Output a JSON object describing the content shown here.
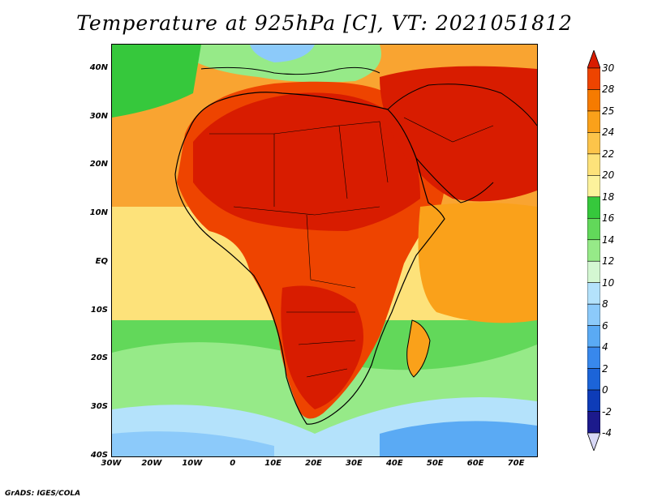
{
  "title": "Temperature at 925hPa [C], VT: 2021051812",
  "credit": "GrADS: IGES/COLA",
  "axes": {
    "lat_labels": [
      "40N",
      "30N",
      "20N",
      "10N",
      "EQ",
      "10S",
      "20S",
      "30S",
      "40S"
    ],
    "lat_values": [
      40,
      30,
      20,
      10,
      0,
      -10,
      -20,
      -30,
      -40
    ],
    "lon_labels": [
      "30W",
      "20W",
      "10W",
      "0",
      "10E",
      "20E",
      "30E",
      "40E",
      "50E",
      "60E",
      "70E"
    ],
    "lon_values": [
      -30,
      -20,
      -10,
      0,
      10,
      20,
      30,
      40,
      50,
      60,
      70
    ],
    "lat_range": [
      -40,
      45
    ],
    "lon_range": [
      -30,
      75
    ]
  },
  "colorbar": {
    "labels": [
      "30",
      "28",
      "25",
      "24",
      "22",
      "20",
      "18",
      "16",
      "14",
      "12",
      "10",
      "8",
      "6",
      "4",
      "2",
      "0",
      "-2",
      "-4"
    ],
    "colors": [
      "#d81c00",
      "#ee4400",
      "#f67b00",
      "#faa11a",
      "#fcc44a",
      "#fde27a",
      "#fcf29c",
      "#36c83c",
      "#62d85a",
      "#96ea88",
      "#d4f7d2",
      "#b4e2fb",
      "#8ccafa",
      "#5aaaf4",
      "#3888ec",
      "#1c64d8",
      "#0e3cb8",
      "#1c1a8c",
      "#d8d8f6"
    ]
  },
  "field": {
    "sea_background": "#fcd88a",
    "hot_core": "#d81c00",
    "hot": "#ee4400",
    "warm": "#f67b00",
    "mild": "#faa11a",
    "cool_green": "#36c83c",
    "light_green": "#96ea88",
    "cold_blue": "#8ccafa"
  }
}
